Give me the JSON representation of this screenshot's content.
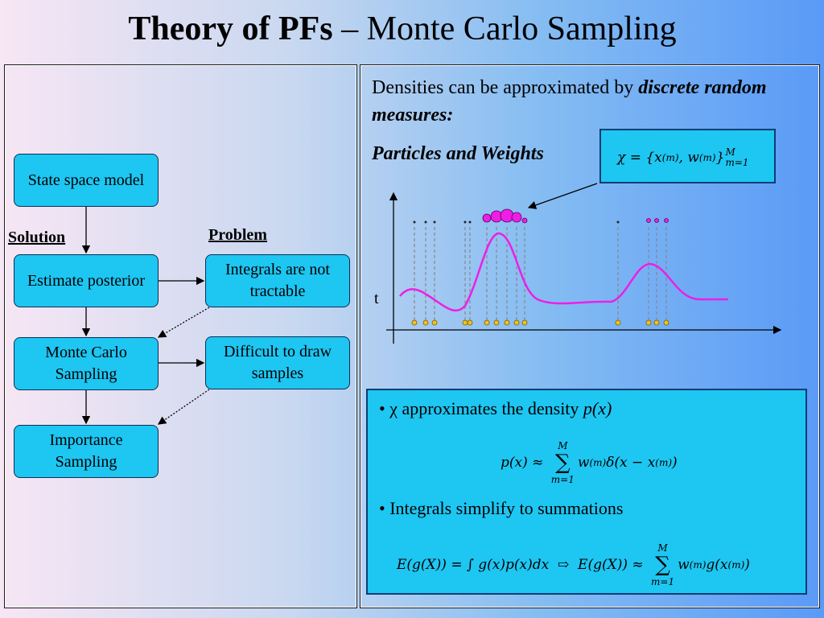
{
  "header": {
    "title_bold": "Theory of PFs",
    "title_rest": " – Monte Carlo Sampling"
  },
  "flowchart": {
    "solution_label": "Solution",
    "problem_label": "Problem",
    "nodes": [
      {
        "label": "State space model"
      },
      {
        "label": "Estimate posterior"
      },
      {
        "label": "Monte Carlo Sampling"
      },
      {
        "label": "Importance Sampling"
      },
      {
        "label": "Integrals are not tractable"
      },
      {
        "label": "Difficult to draw samples"
      }
    ]
  },
  "right": {
    "intro": "Densities can be approximated by ",
    "intro_emph": "discrete random measures:",
    "particles_label": "Particles and Weights",
    "axis_label": "t",
    "formula": [
      {
        "t": "χ = {x"
      },
      {
        "sup": "(m)"
      },
      {
        "t": ", w"
      },
      {
        "sup": "(m)"
      },
      {
        "t": "}"
      },
      {
        "sup": "M",
        "sub": "m=1"
      }
    ]
  },
  "bullets": [
    {
      "text": "χ approximates the density ",
      "emph": "p(x)",
      "formula": [
        {
          "t": "p(x) ≈ "
        },
        {
          "over": "M",
          "op": "∑",
          "under": "m=1"
        },
        {
          "t": "w"
        },
        {
          "sup": "(m)"
        },
        {
          "t": "δ(x − x"
        },
        {
          "sup": "(m)"
        },
        {
          "t": ")"
        }
      ]
    },
    {
      "text": "Integrals simplify to summations",
      "formula": [
        {
          "t": "E(g(X)) = ∫ g(x)p(x)dx"
        },
        {
          "t": "  ⇨  "
        },
        {
          "t": "E(g(X)) ≈ "
        },
        {
          "over": "M",
          "op": "∑",
          "under": "m=1"
        },
        {
          "t": "w"
        },
        {
          "sup": "(m)"
        },
        {
          "t": "g(x"
        },
        {
          "sup": "(m)"
        },
        {
          "t": ")"
        }
      ]
    }
  ]
}
